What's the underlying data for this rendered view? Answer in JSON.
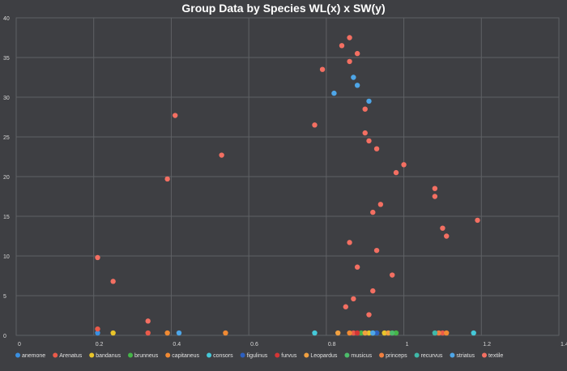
{
  "chart_data": {
    "type": "scatter",
    "title": "Group Data by Species  WL(x) x SW(y)",
    "xlabel": "",
    "ylabel": "",
    "xlim": [
      0,
      1.4
    ],
    "ylim": [
      0,
      40
    ],
    "xticks": [
      "0",
      "0.2",
      "0.4",
      "0.6",
      "0.8",
      "1",
      "1.2",
      "1.4"
    ],
    "yticks": [
      "0",
      "5",
      "10",
      "15",
      "20",
      "25",
      "30",
      "35",
      "40"
    ],
    "grid": true,
    "legend_position": "bottom",
    "series": [
      {
        "name": "anemone",
        "color": "#3a8fe0",
        "points": [
          [
            0.21,
            0.3
          ]
        ]
      },
      {
        "name": "Arenatus",
        "color": "#ea5a4a",
        "points": [
          [
            0.21,
            0.8
          ],
          [
            0.34,
            0.3
          ],
          [
            0.87,
            0.3
          ],
          [
            1.1,
            0.3
          ]
        ]
      },
      {
        "name": "bandanus",
        "color": "#e8c42a",
        "points": [
          [
            0.25,
            0.3
          ],
          [
            0.91,
            0.3
          ],
          [
            0.95,
            0.3
          ]
        ]
      },
      {
        "name": "brunneus",
        "color": "#45b548",
        "points": [
          [
            0.89,
            0.3
          ],
          [
            0.93,
            0.3
          ],
          [
            0.98,
            0.3
          ]
        ]
      },
      {
        "name": "capitaneus",
        "color": "#f08a33",
        "points": [
          [
            0.39,
            0.3
          ],
          [
            0.54,
            0.3
          ],
          [
            0.86,
            0.3
          ],
          [
            1.11,
            0.3
          ]
        ]
      },
      {
        "name": "consors",
        "color": "#45c8d8",
        "points": [
          [
            0.77,
            0.3
          ],
          [
            0.92,
            0.3
          ],
          [
            1.18,
            0.3
          ]
        ]
      },
      {
        "name": "figulinus",
        "color": "#2c5fbf",
        "points": [
          [
            0.93,
            0.3
          ]
        ]
      },
      {
        "name": "furvus",
        "color": "#d43535",
        "points": [
          [
            0.88,
            0.3
          ]
        ]
      },
      {
        "name": "Leopardus",
        "color": "#f0a040",
        "points": [
          [
            0.83,
            0.3
          ],
          [
            0.9,
            0.3
          ],
          [
            0.96,
            0.3
          ]
        ]
      },
      {
        "name": "musicus",
        "color": "#4cbc6a",
        "points": [
          [
            0.97,
            0.3
          ]
        ]
      },
      {
        "name": "princeps",
        "color": "#f07f3f",
        "points": [
          [
            1.09,
            0.3
          ]
        ]
      },
      {
        "name": "recurvus",
        "color": "#3fb8a8",
        "points": [
          [
            1.08,
            0.3
          ]
        ]
      },
      {
        "name": "striatus",
        "color": "#4ea6e8",
        "points": [
          [
            0.42,
            0.3
          ],
          [
            0.82,
            30.5
          ],
          [
            0.87,
            32.5
          ],
          [
            0.88,
            31.5
          ],
          [
            0.91,
            29.5
          ],
          [
            0.92,
            0.3
          ]
        ]
      },
      {
        "name": "textile",
        "color": "#f36f62",
        "points": [
          [
            0.21,
            9.8
          ],
          [
            0.25,
            6.8
          ],
          [
            0.34,
            1.8
          ],
          [
            0.41,
            27.7
          ],
          [
            0.39,
            19.7
          ],
          [
            0.53,
            22.7
          ],
          [
            0.79,
            33.5
          ],
          [
            0.77,
            26.5
          ],
          [
            0.84,
            36.5
          ],
          [
            0.86,
            37.5
          ],
          [
            0.86,
            34.5
          ],
          [
            0.88,
            35.5
          ],
          [
            0.9,
            28.5
          ],
          [
            0.9,
            25.5
          ],
          [
            0.91,
            24.5
          ],
          [
            0.93,
            23.5
          ],
          [
            0.92,
            15.5
          ],
          [
            0.94,
            16.5
          ],
          [
            0.86,
            11.7
          ],
          [
            0.93,
            10.7
          ],
          [
            0.88,
            8.6
          ],
          [
            0.97,
            7.6
          ],
          [
            0.92,
            5.6
          ],
          [
            0.87,
            4.6
          ],
          [
            0.85,
            3.6
          ],
          [
            0.91,
            2.6
          ],
          [
            0.98,
            20.5
          ],
          [
            1.0,
            21.5
          ],
          [
            1.08,
            18.5
          ],
          [
            1.08,
            17.5
          ],
          [
            1.1,
            13.5
          ],
          [
            1.11,
            12.5
          ],
          [
            1.19,
            14.5
          ]
        ]
      }
    ]
  }
}
